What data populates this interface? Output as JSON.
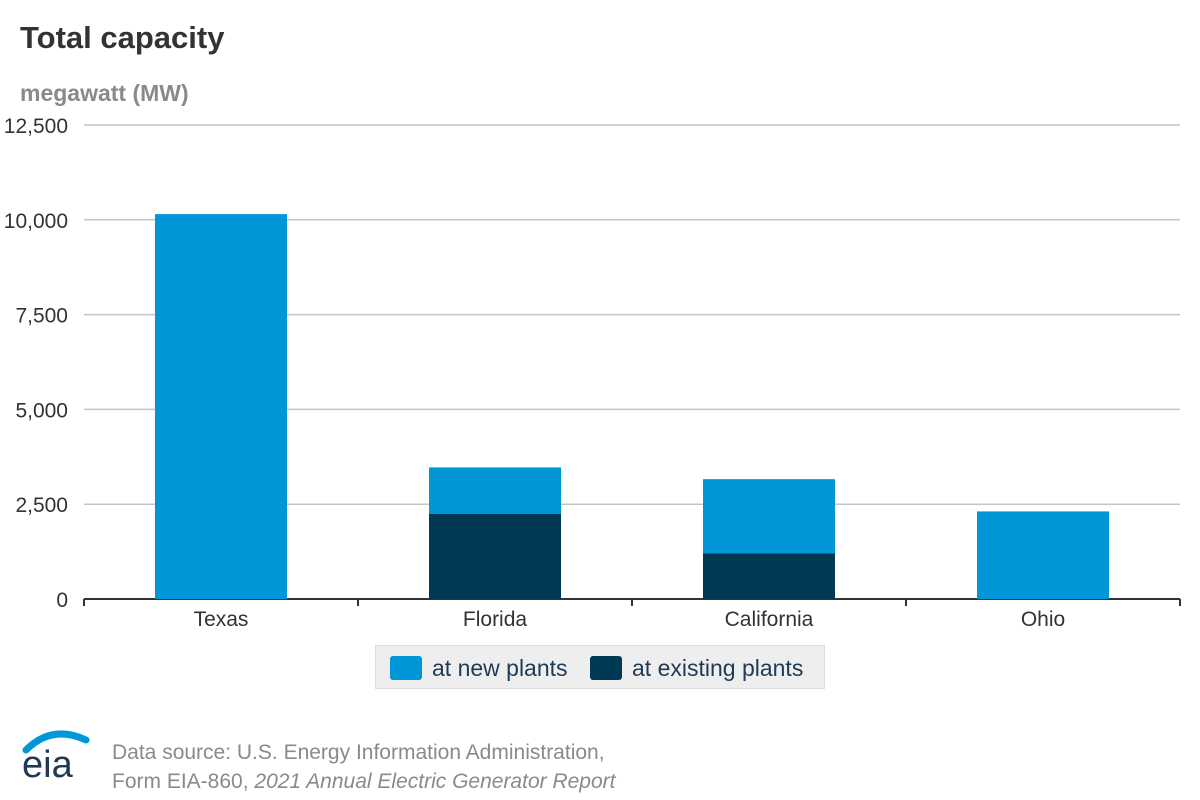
{
  "header": {
    "title": "Total capacity",
    "unit": "megawatt (MW)"
  },
  "chart_data": {
    "type": "bar",
    "stacked": true,
    "title": "Total capacity",
    "ylabel": "megawatt (MW)",
    "xlabel": "",
    "ylim": [
      0,
      12500
    ],
    "yticks": [
      0,
      2500,
      5000,
      7500,
      10000,
      12500
    ],
    "ytick_labels": [
      "0",
      "2,500",
      "5,000",
      "7,500",
      "10,000",
      "12,500"
    ],
    "grid": true,
    "legend_position": "bottom-center",
    "categories": [
      "Texas",
      "Florida",
      "California",
      "Ohio"
    ],
    "series": [
      {
        "name": "at existing plants",
        "color": "#003953",
        "values": [
          0,
          2250,
          1200,
          0
        ]
      },
      {
        "name": "at new plants",
        "color": "#0096d7",
        "values": [
          10150,
          1220,
          1960,
          2310
        ]
      }
    ]
  },
  "legend": {
    "items": [
      {
        "label": "at new plants",
        "color": "#0096d7"
      },
      {
        "label": "at existing plants",
        "color": "#003953"
      }
    ]
  },
  "footer": {
    "source_line1": "Data source: U.S. Energy Information Administration,",
    "source_line2_prefix": "Form EIA-860, ",
    "source_line2_italic": "2021 Annual Electric Generator Report",
    "logo_text": "eia"
  }
}
